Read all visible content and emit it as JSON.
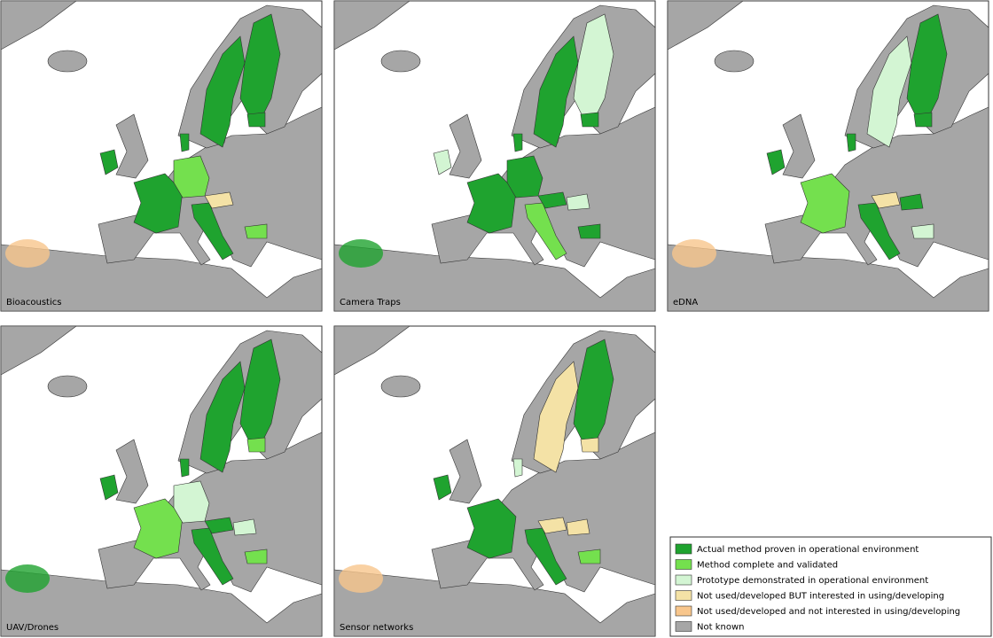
{
  "panels": [
    {
      "label": "Bioacoustics"
    },
    {
      "label": "Camera Traps"
    },
    {
      "label": "eDNA"
    },
    {
      "label": "UAV/Drones"
    },
    {
      "label": "Sensor networks"
    }
  ],
  "legend": {
    "items": [
      {
        "label": "Actual method proven in operational environment",
        "color": "#1fa32f"
      },
      {
        "label": "Method complete and validated",
        "color": "#74e04e"
      },
      {
        "label": "Prototype demonstrated in operational environment",
        "color": "#d3f5d3"
      },
      {
        "label": "Not used/developed BUT interested in using/developing",
        "color": "#f4e2a6"
      },
      {
        "label": "Not used/developed and not interested in using/developing",
        "color": "#f8c68c"
      },
      {
        "label": "Not known",
        "color": "#a6a6a6"
      }
    ]
  }
}
